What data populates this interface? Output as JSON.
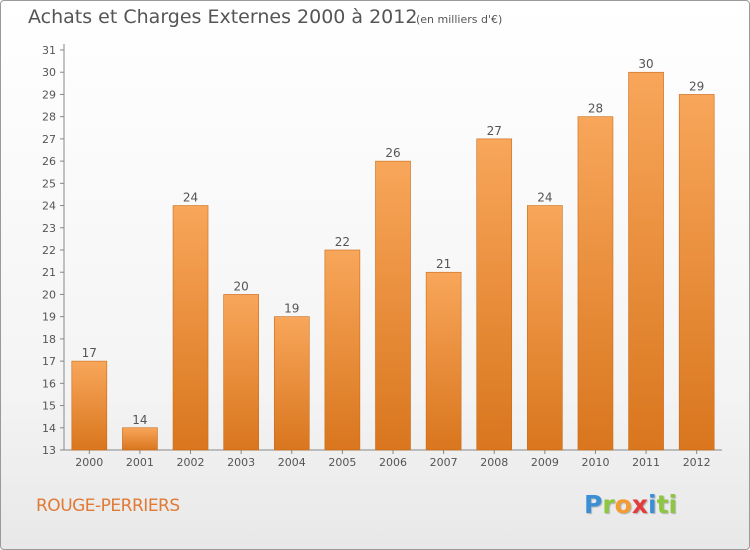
{
  "header": {
    "title": "Achats et Charges Externes 2000 à 2012",
    "unit": "(en milliers d'€)"
  },
  "footer": {
    "commune": "ROUGE-PERRIERS",
    "logo": [
      "P",
      "r",
      "o",
      "x",
      "i",
      "ti"
    ]
  },
  "colors": {
    "bar_top": "#f8a65a",
    "bar_bottom": "#d9761e",
    "bar_edge": "#c86a18",
    "text": "#555555",
    "grid": "#dddddd"
  },
  "chart_data": {
    "type": "bar",
    "title": "Achats et Charges Externes 2000 à 2012",
    "ylabel": "",
    "xlabel": "",
    "categories": [
      "2000",
      "2001",
      "2002",
      "2003",
      "2004",
      "2005",
      "2006",
      "2007",
      "2008",
      "2009",
      "2010",
      "2011",
      "2012"
    ],
    "values": [
      17,
      14,
      24,
      20,
      19,
      22,
      26,
      21,
      27,
      24,
      28,
      30,
      29
    ],
    "ylim": [
      13,
      31
    ],
    "yticks": [
      13,
      14,
      15,
      16,
      17,
      18,
      19,
      20,
      21,
      22,
      23,
      24,
      25,
      26,
      27,
      28,
      29,
      30,
      31
    ],
    "grid": false,
    "data_labels": true
  }
}
